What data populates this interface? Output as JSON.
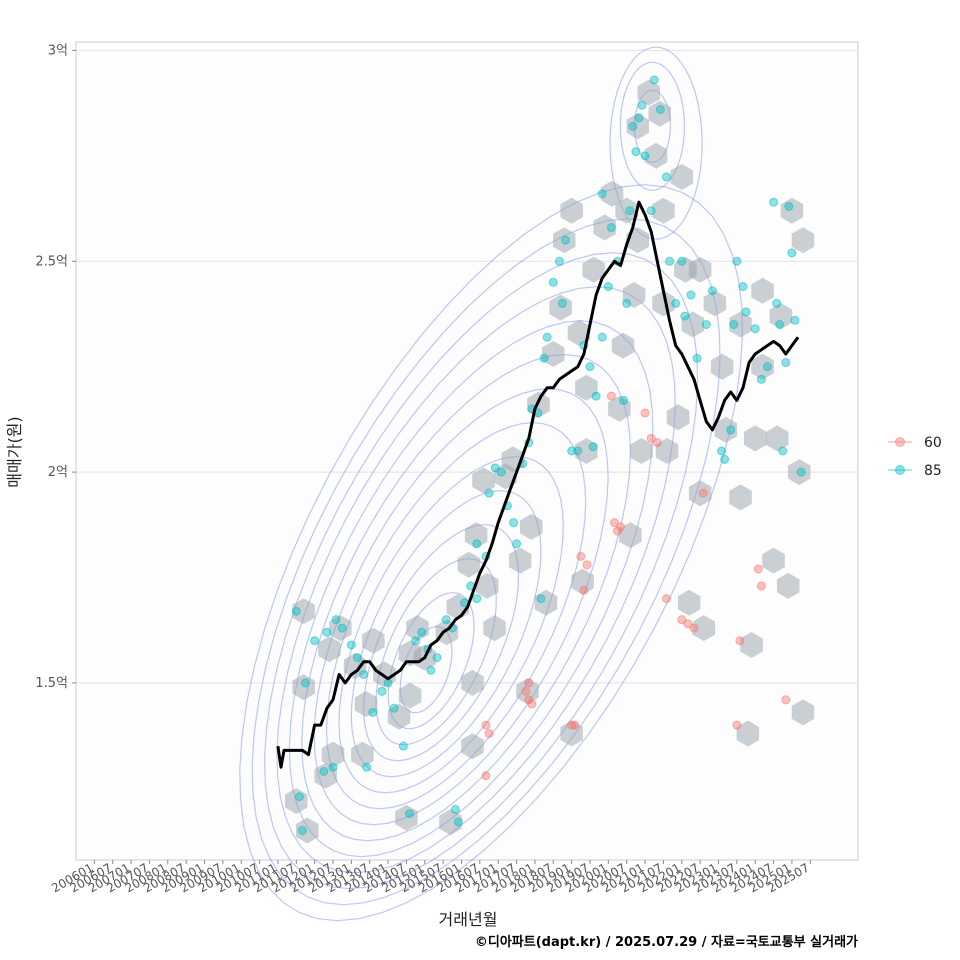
{
  "chart_data": {
    "type": "scatter",
    "xlabel": "거래년월",
    "ylabel": "매매가(원)",
    "caption": "©디아파트(dapt.kr) / 2025.07.29 / 자료=국토교통부 실거래가",
    "y_unit": "억",
    "ylim": [
      1.08,
      3.02
    ],
    "y_ticks": [
      {
        "value": 1.5,
        "label": "1.5억"
      },
      {
        "value": 2.0,
        "label": "2억"
      },
      {
        "value": 2.5,
        "label": "2.5억"
      },
      {
        "value": 3.0,
        "label": "3억"
      }
    ],
    "x_ticks": [
      "200601",
      "200607",
      "200701",
      "200707",
      "200801",
      "200807",
      "200901",
      "200907",
      "201001",
      "201007",
      "201101",
      "201107",
      "201201",
      "201207",
      "201301",
      "201307",
      "201401",
      "201407",
      "201501",
      "201507",
      "201601",
      "201607",
      "201701",
      "201707",
      "201801",
      "201807",
      "201901",
      "201907",
      "202001",
      "202007",
      "202101",
      "202107",
      "202201",
      "202207",
      "202301",
      "202307",
      "202401",
      "202407",
      "202501",
      "202507"
    ],
    "grid": true,
    "legend_position": "right",
    "colors": {
      "s60": "#F8766D",
      "s85": "#00BFC4",
      "trend": "#000000",
      "hex": "#98a2ab",
      "contour": "#6a85e8",
      "grid": "#e2e2e2",
      "panel_border": "#cccccc"
    },
    "series": [
      {
        "name": "60",
        "color": "#F8766D",
        "points": [
          [
            "2016-09",
            1.4
          ],
          [
            "2016-10",
            1.38
          ],
          [
            "2016-09",
            1.28
          ],
          [
            "2017-10",
            1.48
          ],
          [
            "2017-11",
            1.46
          ],
          [
            "2017-12",
            1.45
          ],
          [
            "2017-11",
            1.5
          ],
          [
            "2019-01",
            1.4
          ],
          [
            "2019-02",
            1.4
          ],
          [
            "2019-04",
            1.8
          ],
          [
            "2019-05",
            1.72
          ],
          [
            "2019-06",
            1.78
          ],
          [
            "2020-03",
            1.88
          ],
          [
            "2020-04",
            1.86
          ],
          [
            "2020-05",
            1.87
          ],
          [
            "2020-02",
            2.18
          ],
          [
            "2021-01",
            2.14
          ],
          [
            "2021-03",
            2.08
          ],
          [
            "2021-05",
            2.07
          ],
          [
            "2021-08",
            1.7
          ],
          [
            "2022-01",
            1.65
          ],
          [
            "2022-03",
            1.64
          ],
          [
            "2022-05",
            1.63
          ],
          [
            "2022-08",
            1.95
          ],
          [
            "2023-07",
            1.4
          ],
          [
            "2023-08",
            1.6
          ],
          [
            "2024-02",
            1.77
          ],
          [
            "2024-03",
            1.73
          ],
          [
            "2024-11",
            1.46
          ]
        ]
      },
      {
        "name": "85",
        "color": "#00BFC4",
        "points": [
          [
            "2011-07",
            1.67
          ],
          [
            "2011-09",
            1.15
          ],
          [
            "2011-08",
            1.23
          ],
          [
            "2011-10",
            1.5
          ],
          [
            "2012-04",
            1.29
          ],
          [
            "2012-07",
            1.3
          ],
          [
            "2012-01",
            1.6
          ],
          [
            "2012-05",
            1.62
          ],
          [
            "2012-08",
            1.65
          ],
          [
            "2012-10",
            1.63
          ],
          [
            "2013-01",
            1.59
          ],
          [
            "2013-03",
            1.56
          ],
          [
            "2013-05",
            1.52
          ],
          [
            "2013-06",
            1.3
          ],
          [
            "2013-08",
            1.43
          ],
          [
            "2013-11",
            1.48
          ],
          [
            "2014-01",
            1.5
          ],
          [
            "2014-03",
            1.44
          ],
          [
            "2014-06",
            1.35
          ],
          [
            "2014-08",
            1.19
          ],
          [
            "2014-10",
            1.6
          ],
          [
            "2014-12",
            1.62
          ],
          [
            "2015-02",
            1.58
          ],
          [
            "2015-03",
            1.53
          ],
          [
            "2015-05",
            1.56
          ],
          [
            "2015-08",
            1.65
          ],
          [
            "2015-10",
            1.63
          ],
          [
            "2015-12",
            1.17
          ],
          [
            "2015-11",
            1.2
          ],
          [
            "2016-02",
            1.69
          ],
          [
            "2016-04",
            1.73
          ],
          [
            "2016-06",
            1.7
          ],
          [
            "2016-06",
            1.83
          ],
          [
            "2016-09",
            1.8
          ],
          [
            "2016-10",
            1.95
          ],
          [
            "2016-12",
            2.01
          ],
          [
            "2017-02",
            2.0
          ],
          [
            "2017-04",
            1.92
          ],
          [
            "2017-06",
            1.88
          ],
          [
            "2017-07",
            1.83
          ],
          [
            "2017-09",
            2.02
          ],
          [
            "2017-11",
            2.07
          ],
          [
            "2017-12",
            2.15
          ],
          [
            "2018-02",
            2.14
          ],
          [
            "2018-03",
            1.7
          ],
          [
            "2018-04",
            2.27
          ],
          [
            "2018-05",
            2.32
          ],
          [
            "2018-07",
            2.45
          ],
          [
            "2018-09",
            2.5
          ],
          [
            "2018-10",
            2.4
          ],
          [
            "2018-11",
            2.55
          ],
          [
            "2019-01",
            2.05
          ],
          [
            "2019-03",
            2.05
          ],
          [
            "2019-05",
            2.3
          ],
          [
            "2019-07",
            2.25
          ],
          [
            "2019-08",
            2.06
          ],
          [
            "2019-09",
            2.18
          ],
          [
            "2019-11",
            2.32
          ],
          [
            "2019-11",
            2.66
          ],
          [
            "2020-01",
            2.44
          ],
          [
            "2020-02",
            2.58
          ],
          [
            "2020-04",
            2.5
          ],
          [
            "2020-06",
            2.17
          ],
          [
            "2020-07",
            2.4
          ],
          [
            "2020-08",
            2.62
          ],
          [
            "2020-09",
            2.82
          ],
          [
            "2020-10",
            2.76
          ],
          [
            "2020-11",
            2.84
          ],
          [
            "2020-12",
            2.87
          ],
          [
            "2021-01",
            2.75
          ],
          [
            "2021-03",
            2.62
          ],
          [
            "2021-04",
            2.93
          ],
          [
            "2021-06",
            2.86
          ],
          [
            "2021-08",
            2.7
          ],
          [
            "2021-09",
            2.5
          ],
          [
            "2021-11",
            2.4
          ],
          [
            "2022-01",
            2.5
          ],
          [
            "2022-02",
            2.37
          ],
          [
            "2022-04",
            2.42
          ],
          [
            "2022-06",
            2.27
          ],
          [
            "2022-09",
            2.35
          ],
          [
            "2022-11",
            2.43
          ],
          [
            "2023-02",
            2.05
          ],
          [
            "2023-03",
            2.03
          ],
          [
            "2023-05",
            2.1
          ],
          [
            "2023-06",
            2.35
          ],
          [
            "2023-07",
            2.5
          ],
          [
            "2023-09",
            2.44
          ],
          [
            "2023-10",
            2.38
          ],
          [
            "2024-01",
            2.34
          ],
          [
            "2024-03",
            2.22
          ],
          [
            "2024-05",
            2.25
          ],
          [
            "2024-07",
            2.64
          ],
          [
            "2024-08",
            2.4
          ],
          [
            "2024-09",
            2.35
          ],
          [
            "2024-10",
            2.05
          ],
          [
            "2024-11",
            2.26
          ],
          [
            "2024-12",
            2.63
          ],
          [
            "2025-01",
            2.52
          ],
          [
            "2025-02",
            2.36
          ],
          [
            "2025-04",
            2.0
          ]
        ]
      }
    ],
    "trend_line": [
      [
        "2011-01",
        1.35
      ],
      [
        "2011-02",
        1.3
      ],
      [
        "2011-03",
        1.34
      ],
      [
        "2011-06",
        1.34
      ],
      [
        "2011-09",
        1.34
      ],
      [
        "2011-11",
        1.33
      ],
      [
        "2012-01",
        1.4
      ],
      [
        "2012-03",
        1.4
      ],
      [
        "2012-05",
        1.44
      ],
      [
        "2012-07",
        1.46
      ],
      [
        "2012-09",
        1.52
      ],
      [
        "2012-11",
        1.5
      ],
      [
        "2013-01",
        1.52
      ],
      [
        "2013-03",
        1.53
      ],
      [
        "2013-05",
        1.55
      ],
      [
        "2013-07",
        1.55
      ],
      [
        "2013-09",
        1.53
      ],
      [
        "2013-11",
        1.52
      ],
      [
        "2014-01",
        1.51
      ],
      [
        "2014-03",
        1.52
      ],
      [
        "2014-05",
        1.53
      ],
      [
        "2014-07",
        1.55
      ],
      [
        "2014-09",
        1.55
      ],
      [
        "2014-11",
        1.55
      ],
      [
        "2015-01",
        1.56
      ],
      [
        "2015-03",
        1.59
      ],
      [
        "2015-05",
        1.6
      ],
      [
        "2015-07",
        1.62
      ],
      [
        "2015-09",
        1.63
      ],
      [
        "2015-11",
        1.65
      ],
      [
        "2016-01",
        1.66
      ],
      [
        "2016-03",
        1.68
      ],
      [
        "2016-05",
        1.72
      ],
      [
        "2016-07",
        1.76
      ],
      [
        "2016-09",
        1.79
      ],
      [
        "2016-11",
        1.83
      ],
      [
        "2017-01",
        1.88
      ],
      [
        "2017-03",
        1.92
      ],
      [
        "2017-05",
        1.96
      ],
      [
        "2017-07",
        2.0
      ],
      [
        "2017-09",
        2.04
      ],
      [
        "2017-11",
        2.08
      ],
      [
        "2018-01",
        2.15
      ],
      [
        "2018-03",
        2.18
      ],
      [
        "2018-05",
        2.2
      ],
      [
        "2018-07",
        2.2
      ],
      [
        "2018-09",
        2.22
      ],
      [
        "2018-11",
        2.23
      ],
      [
        "2019-01",
        2.24
      ],
      [
        "2019-03",
        2.25
      ],
      [
        "2019-05",
        2.28
      ],
      [
        "2019-07",
        2.35
      ],
      [
        "2019-09",
        2.42
      ],
      [
        "2019-11",
        2.46
      ],
      [
        "2020-01",
        2.48
      ],
      [
        "2020-03",
        2.5
      ],
      [
        "2020-05",
        2.49
      ],
      [
        "2020-07",
        2.54
      ],
      [
        "2020-09",
        2.58
      ],
      [
        "2020-11",
        2.64
      ],
      [
        "2021-01",
        2.61
      ],
      [
        "2021-03",
        2.57
      ],
      [
        "2021-05",
        2.5
      ],
      [
        "2021-07",
        2.43
      ],
      [
        "2021-09",
        2.36
      ],
      [
        "2021-11",
        2.3
      ],
      [
        "2022-01",
        2.28
      ],
      [
        "2022-03",
        2.25
      ],
      [
        "2022-05",
        2.22
      ],
      [
        "2022-07",
        2.17
      ],
      [
        "2022-09",
        2.12
      ],
      [
        "2022-11",
        2.1
      ],
      [
        "2023-01",
        2.13
      ],
      [
        "2023-03",
        2.17
      ],
      [
        "2023-05",
        2.19
      ],
      [
        "2023-07",
        2.17
      ],
      [
        "2023-09",
        2.2
      ],
      [
        "2023-11",
        2.26
      ],
      [
        "2024-01",
        2.28
      ],
      [
        "2024-03",
        2.29
      ],
      [
        "2024-05",
        2.3
      ],
      [
        "2024-07",
        2.31
      ],
      [
        "2024-09",
        2.3
      ],
      [
        "2024-11",
        2.28
      ],
      [
        "2025-01",
        2.3
      ],
      [
        "2025-03",
        2.32
      ]
    ],
    "hexbins": [
      [
        1.22,
        2011.5
      ],
      [
        1.67,
        2011.7
      ],
      [
        1.49,
        2011.7
      ],
      [
        1.15,
        2011.8
      ],
      [
        1.28,
        2012.3
      ],
      [
        1.33,
        2012.5
      ],
      [
        1.58,
        2012.4
      ],
      [
        1.63,
        2012.7
      ],
      [
        1.33,
        2013.3
      ],
      [
        1.45,
        2013.4
      ],
      [
        1.54,
        2013.1
      ],
      [
        1.6,
        2013.6
      ],
      [
        1.52,
        2013.9
      ],
      [
        1.42,
        2014.3
      ],
      [
        1.18,
        2014.5
      ],
      [
        1.47,
        2014.6
      ],
      [
        1.57,
        2014.6
      ],
      [
        1.63,
        2014.8
      ],
      [
        1.56,
        2015.0
      ],
      [
        1.17,
        2015.7
      ],
      [
        1.62,
        2015.6
      ],
      [
        1.68,
        2015.9
      ],
      [
        1.35,
        2016.3
      ],
      [
        1.5,
        2016.3
      ],
      [
        1.78,
        2016.2
      ],
      [
        1.85,
        2016.4
      ],
      [
        1.98,
        2016.6
      ],
      [
        1.73,
        2016.7
      ],
      [
        1.63,
        2016.9
      ],
      [
        1.99,
        2017.2
      ],
      [
        2.03,
        2017.4
      ],
      [
        1.79,
        2017.6
      ],
      [
        1.48,
        2017.8
      ],
      [
        1.87,
        2017.9
      ],
      [
        2.16,
        2018.1
      ],
      [
        1.69,
        2018.3
      ],
      [
        2.28,
        2018.5
      ],
      [
        2.39,
        2018.7
      ],
      [
        2.55,
        2018.8
      ],
      [
        2.62,
        2019.0
      ],
      [
        1.38,
        2019.0
      ],
      [
        1.74,
        2019.3
      ],
      [
        2.05,
        2019.4
      ],
      [
        2.2,
        2019.4
      ],
      [
        2.33,
        2019.2
      ],
      [
        2.48,
        2019.6
      ],
      [
        2.58,
        2019.9
      ],
      [
        2.66,
        2020.1
      ],
      [
        1.85,
        2020.6
      ],
      [
        2.05,
        2020.9
      ],
      [
        2.15,
        2020.3
      ],
      [
        2.3,
        2020.4
      ],
      [
        2.42,
        2020.7
      ],
      [
        2.55,
        2020.8
      ],
      [
        2.62,
        2020.5
      ],
      [
        2.82,
        2020.8
      ],
      [
        2.9,
        2021.1
      ],
      [
        2.85,
        2021.4
      ],
      [
        2.75,
        2021.3
      ],
      [
        2.62,
        2021.5
      ],
      [
        2.4,
        2021.5
      ],
      [
        2.13,
        2021.9
      ],
      [
        2.05,
        2021.6
      ],
      [
        2.7,
        2022.0
      ],
      [
        2.48,
        2022.1
      ],
      [
        2.35,
        2022.3
      ],
      [
        1.69,
        2022.2
      ],
      [
        1.63,
        2022.6
      ],
      [
        1.95,
        2022.5
      ],
      [
        2.48,
        2022.5
      ],
      [
        2.4,
        2022.9
      ],
      [
        2.25,
        2023.1
      ],
      [
        2.1,
        2023.2
      ],
      [
        1.94,
        2023.6
      ],
      [
        2.35,
        2023.6
      ],
      [
        1.59,
        2023.9
      ],
      [
        1.38,
        2023.8
      ],
      [
        2.08,
        2024.0
      ],
      [
        2.25,
        2024.2
      ],
      [
        2.43,
        2024.2
      ],
      [
        1.79,
        2024.5
      ],
      [
        2.08,
        2024.6
      ],
      [
        2.37,
        2024.7
      ],
      [
        1.73,
        2024.9
      ],
      [
        2.0,
        2025.2
      ],
      [
        2.62,
        2025.0
      ],
      [
        2.55,
        2025.3
      ],
      [
        1.43,
        2025.3
      ]
    ],
    "legend": [
      {
        "label": "60",
        "color": "#F8766D"
      },
      {
        "label": "85",
        "color": "#00BFC4"
      }
    ]
  }
}
